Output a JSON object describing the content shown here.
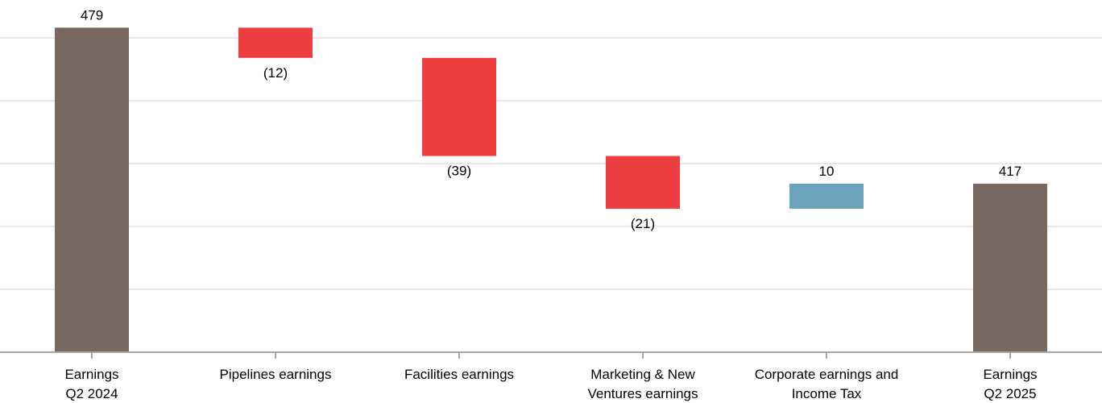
{
  "chart_data": {
    "type": "waterfall",
    "title": "",
    "xlabel": "",
    "ylabel": "",
    "ylim": [
      350,
      490
    ],
    "grid": true,
    "gridlines": [
      375,
      400,
      425,
      450,
      475
    ],
    "categories": [
      [
        "Earnings",
        "Q2 2024"
      ],
      [
        "Pipelines earnings"
      ],
      [
        "Facilities earnings"
      ],
      [
        "Marketing & New",
        "Ventures earnings"
      ],
      [
        "Corporate earnings and",
        "Income Tax"
      ],
      [
        "Earnings",
        "Q2 2025"
      ]
    ],
    "bars": [
      {
        "kind": "total",
        "start": 0,
        "end": 479,
        "value": 479,
        "label": "479"
      },
      {
        "kind": "decrease",
        "start": 479,
        "end": 467,
        "value": -12,
        "label": "(12)"
      },
      {
        "kind": "decrease",
        "start": 467,
        "end": 428,
        "value": -39,
        "label": "(39)"
      },
      {
        "kind": "decrease",
        "start": 428,
        "end": 407,
        "value": -21,
        "label": "(21)"
      },
      {
        "kind": "increase",
        "start": 407,
        "end": 417,
        "value": 10,
        "label": "10"
      },
      {
        "kind": "total",
        "start": 0,
        "end": 417,
        "value": 417,
        "label": "417"
      }
    ],
    "colors": {
      "total": "#786860",
      "decrease": "#ef3e42",
      "increase": "#6ba3bb",
      "grid": "#e6e6e6",
      "axis": "#a6a6a6"
    }
  }
}
